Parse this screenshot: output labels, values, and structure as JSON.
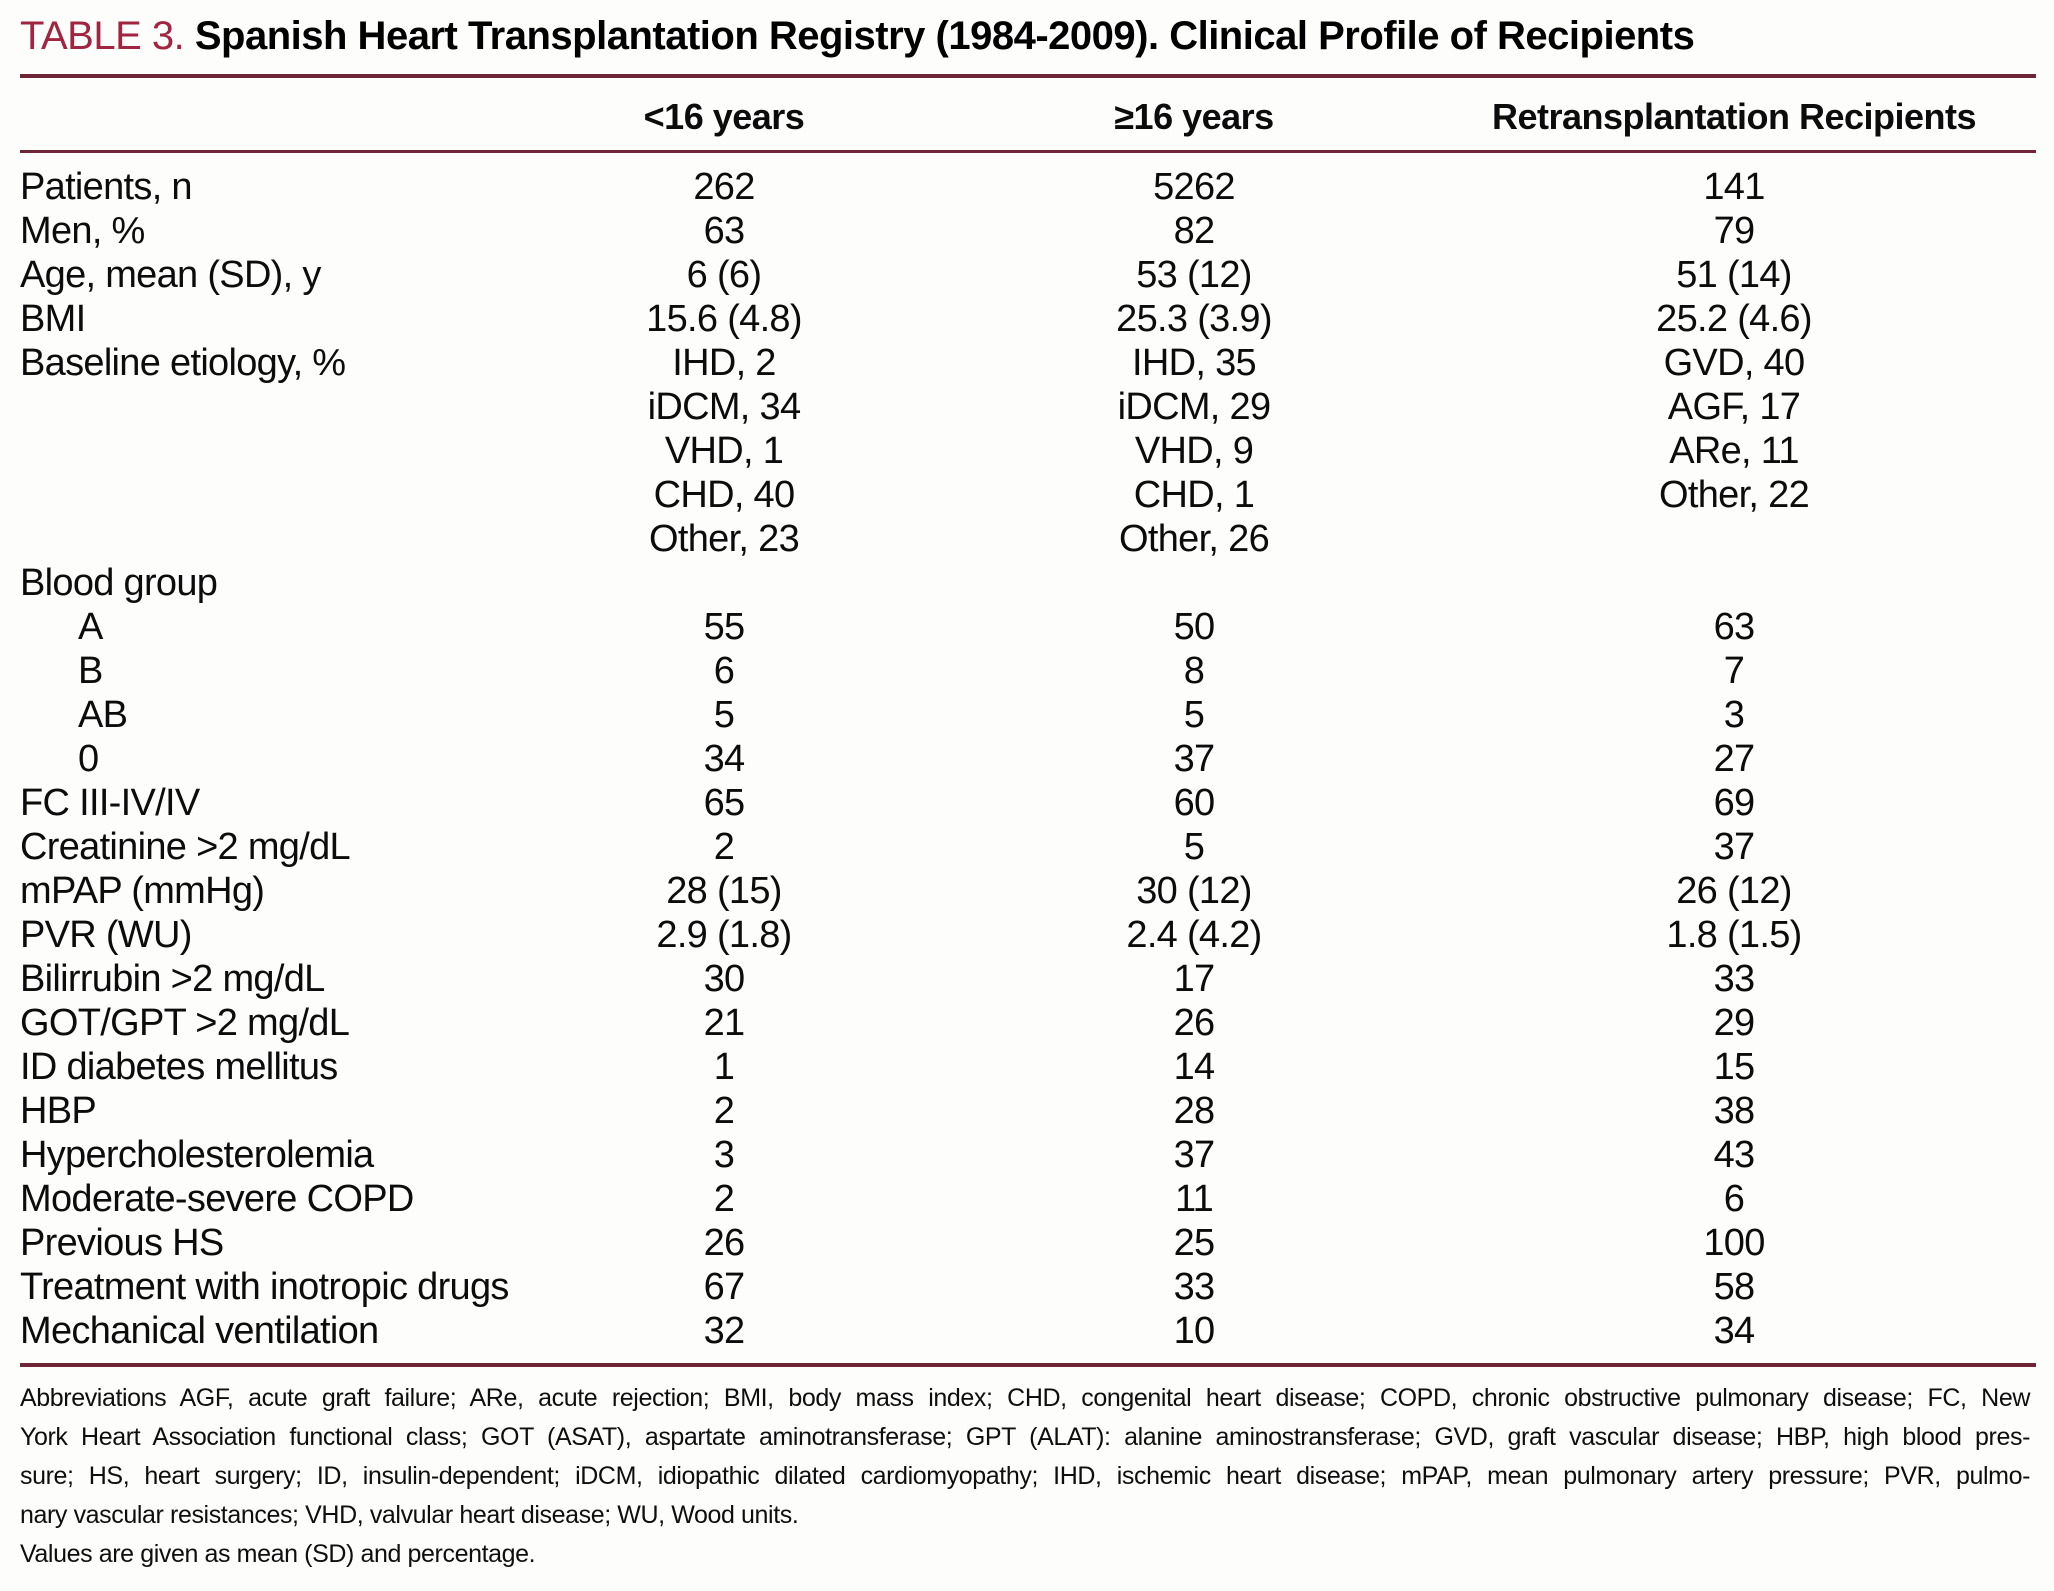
{
  "table": {
    "label": "TABLE 3.",
    "title": "Spanish Heart Transplantation Registry (1984-2009). Clinical Profile of Recipients",
    "columns": [
      "<16 years",
      "≥16 years",
      "Retransplantation Recipients"
    ],
    "rows": [
      {
        "label": "Patients, n",
        "values": [
          "262",
          "5262",
          "141"
        ]
      },
      {
        "label": "Men, %",
        "values": [
          "63",
          "82",
          "79"
        ]
      },
      {
        "label": "Age, mean (SD), y",
        "values": [
          "6 (6)",
          "53 (12)",
          "51 (14)"
        ]
      },
      {
        "label": "BMI",
        "values": [
          "15.6 (4.8)",
          "25.3 (3.9)",
          "25.2 (4.6)"
        ]
      },
      {
        "label": "Baseline etiology, %",
        "values": [
          "IHD, 2",
          "IHD, 35",
          "GVD, 40"
        ]
      },
      {
        "label": "",
        "values": [
          "iDCM, 34",
          "iDCM, 29",
          "AGF, 17"
        ]
      },
      {
        "label": "",
        "values": [
          "VHD, 1",
          "VHD, 9",
          "ARe, 11"
        ]
      },
      {
        "label": "",
        "values": [
          "CHD, 40",
          "CHD, 1",
          "Other, 22"
        ]
      },
      {
        "label": "",
        "values": [
          "Other, 23",
          "Other, 26",
          ""
        ]
      },
      {
        "label": "Blood group",
        "values": [
          "",
          "",
          ""
        ]
      },
      {
        "label": "A",
        "indent": 1,
        "values": [
          "55",
          "50",
          "63"
        ]
      },
      {
        "label": "B",
        "indent": 1,
        "values": [
          "6",
          "8",
          "7"
        ]
      },
      {
        "label": "AB",
        "indent": 1,
        "values": [
          "5",
          "5",
          "3"
        ]
      },
      {
        "label": "0",
        "indent": 1,
        "values": [
          "34",
          "37",
          "27"
        ]
      },
      {
        "label": "FC III-IV/IV",
        "values": [
          "65",
          "60",
          "69"
        ]
      },
      {
        "label": "Creatinine >2 mg/dL",
        "values": [
          "2",
          "5",
          "37"
        ]
      },
      {
        "label": "mPAP (mmHg)",
        "values": [
          "28 (15)",
          "30 (12)",
          "26 (12)"
        ]
      },
      {
        "label": "PVR (WU)",
        "values": [
          "2.9 (1.8)",
          "2.4 (4.2)",
          "1.8 (1.5)"
        ]
      },
      {
        "label": "Bilirrubin >2 mg/dL",
        "values": [
          "30",
          "17",
          "33"
        ]
      },
      {
        "label": "GOT/GPT >2 mg/dL",
        "values": [
          "21",
          "26",
          "29"
        ]
      },
      {
        "label": "ID diabetes mellitus",
        "values": [
          "1",
          "14",
          "15"
        ]
      },
      {
        "label": "HBP",
        "values": [
          "2",
          "28",
          "38"
        ]
      },
      {
        "label": "Hypercholesterolemia",
        "values": [
          "3",
          "37",
          "43"
        ]
      },
      {
        "label": "Moderate-severe COPD",
        "values": [
          "2",
          "11",
          "6"
        ]
      },
      {
        "label": "Previous HS",
        "values": [
          "26",
          "25",
          "100"
        ]
      },
      {
        "label": "Treatment with inotropic drugs",
        "values": [
          "67",
          "33",
          "58"
        ]
      },
      {
        "label": "Mechanical ventilation",
        "values": [
          "32",
          "10",
          "34"
        ]
      }
    ],
    "footnote_lines": [
      "Abbreviations AGF, acute graft failure; ARe, acute rejection; BMI, body mass index; CHD, congenital heart disease; COPD, chronic obstructive pulmonary disease; FC, New",
      "York Heart Association functional class; GOT (ASAT), aspartate aminotransferase; GPT (ALAT): alanine aminostransferase; GVD, graft vascular disease; HBP, high blood pres-",
      "sure; HS, heart surgery; ID, insulin-dependent; iDCM, idiopathic dilated cardiomyopathy; IHD, ischemic heart disease; mPAP, mean pulmonary artery pressure; PVR, pulmo-",
      "nary vascular resistances; VHD, valvular heart disease; WU, Wood units.",
      "Values are given as mean (SD) and percentage."
    ],
    "colors": {
      "title_accent": "#a12440",
      "rule": "#6e2636"
    }
  }
}
